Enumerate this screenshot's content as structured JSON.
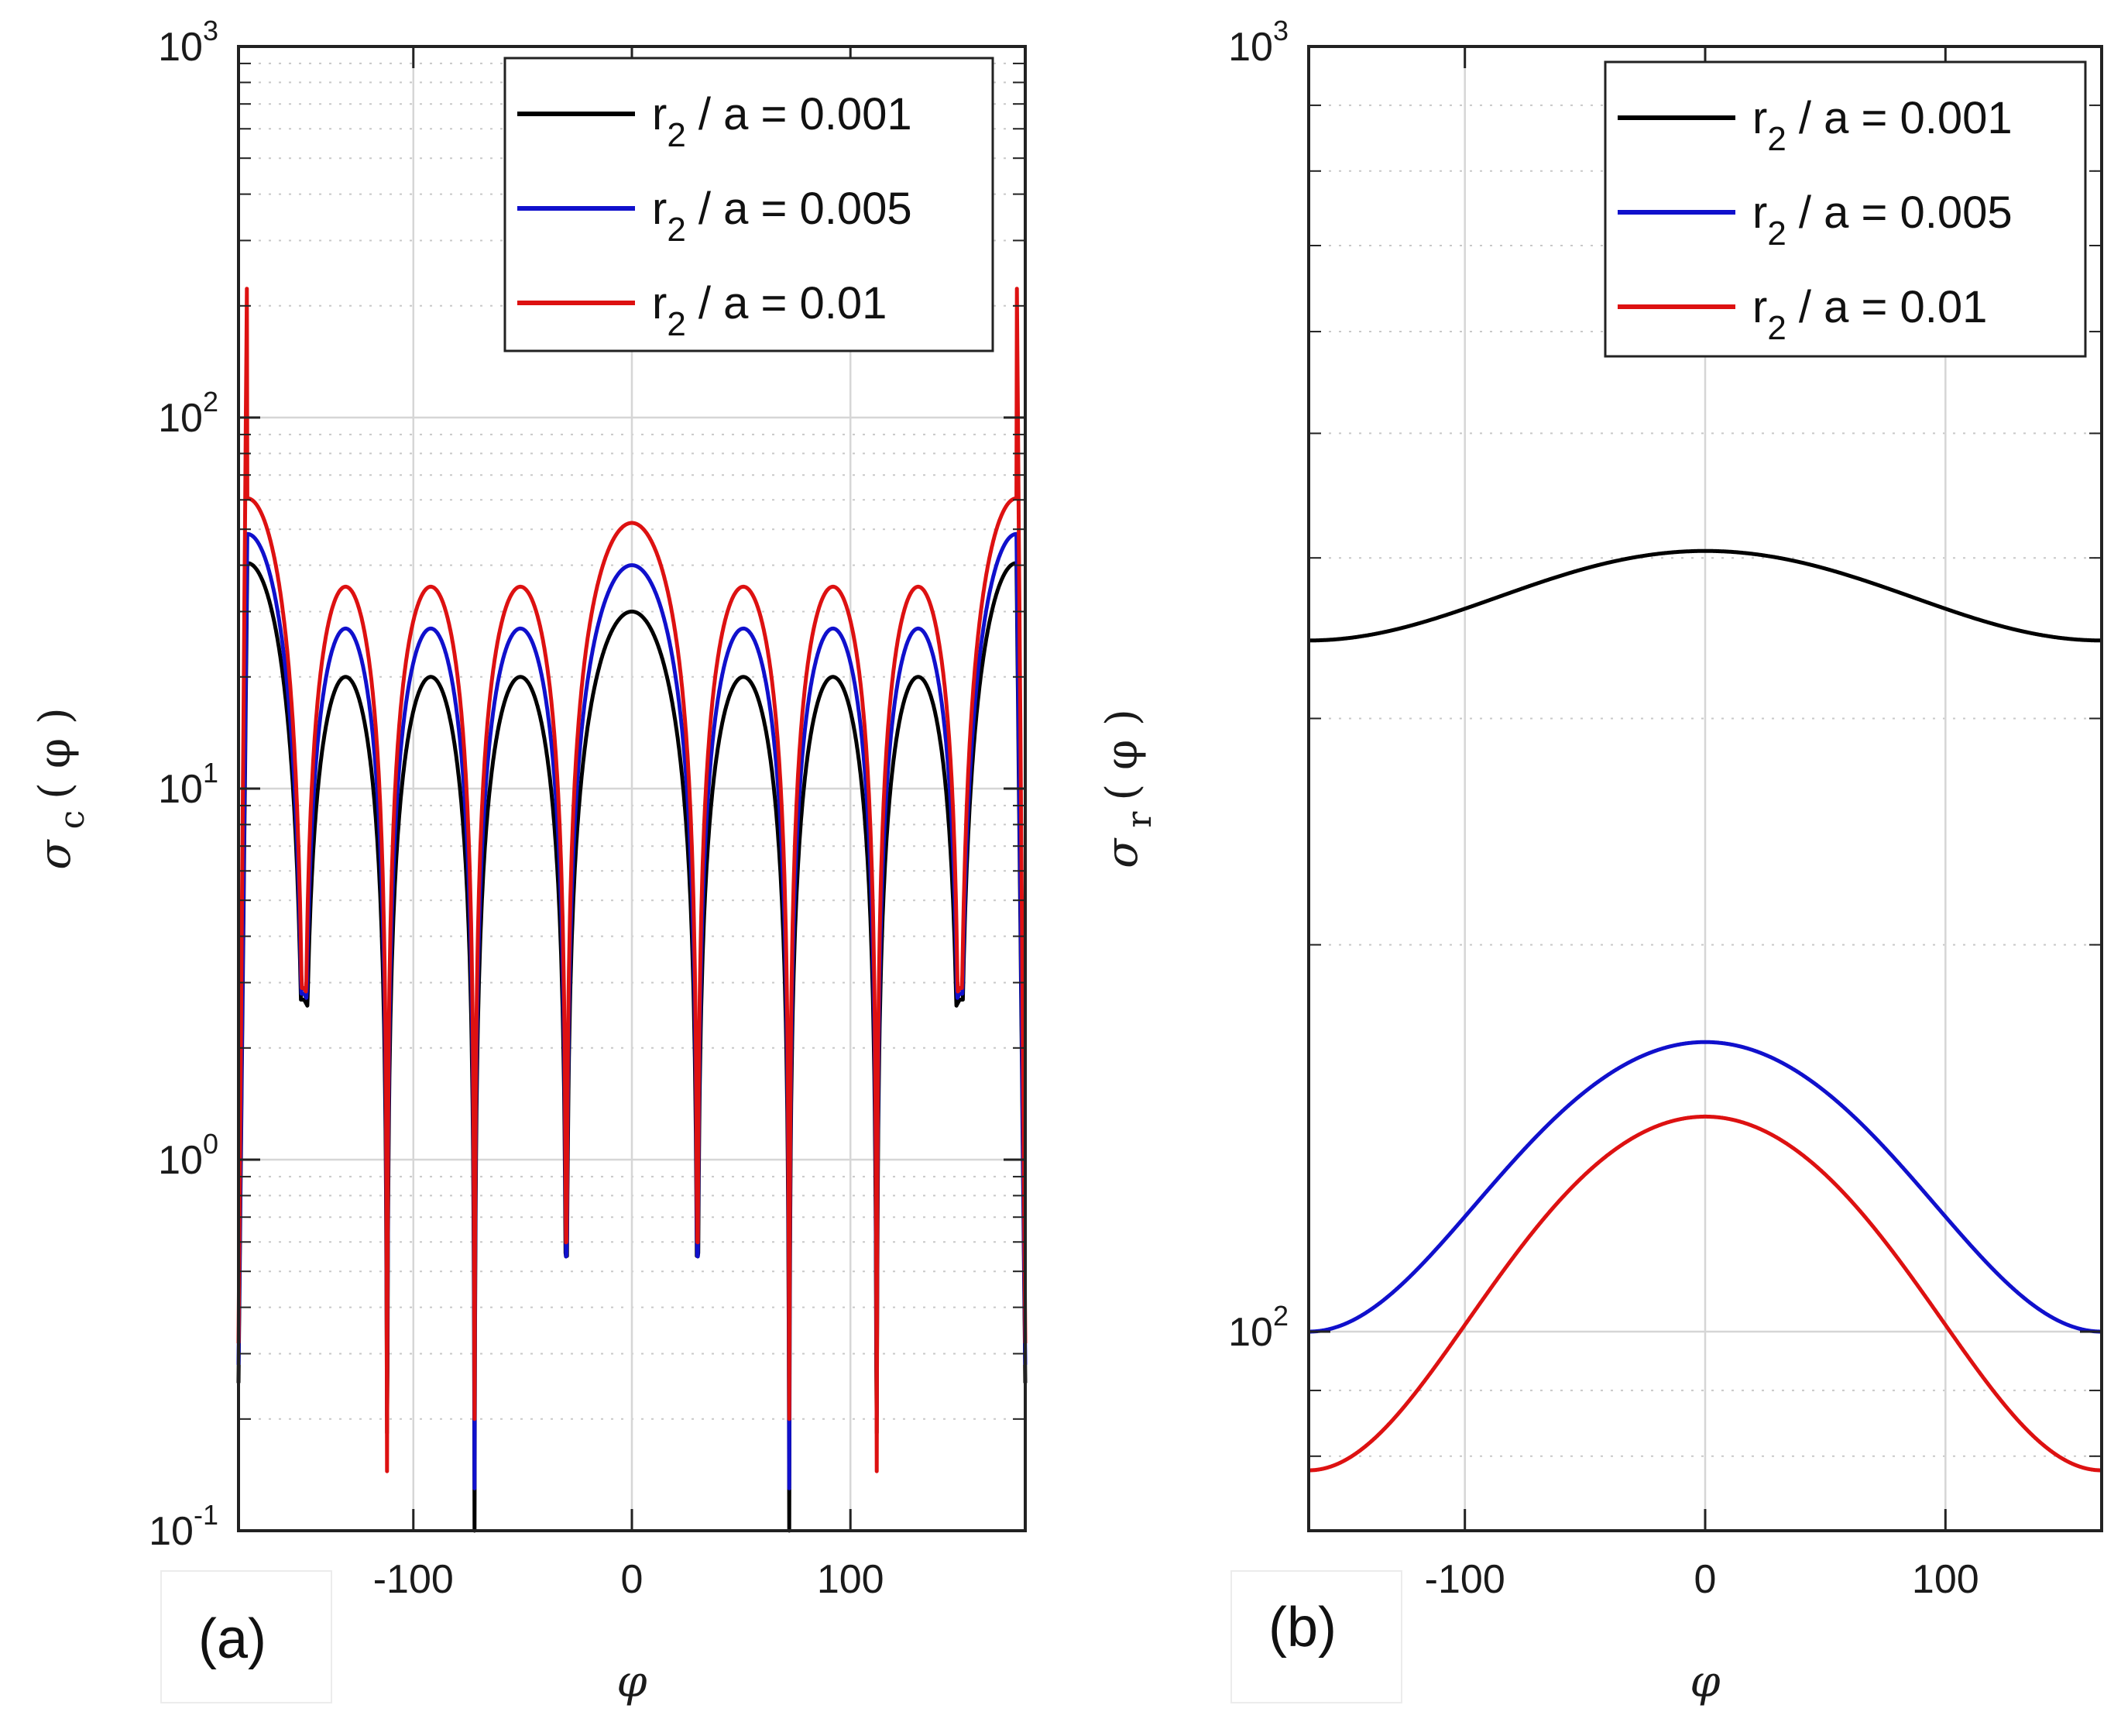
{
  "chart_data": [
    {
      "panel": "(a)",
      "type": "line",
      "yscale": "log",
      "xlim": [
        -180,
        180
      ],
      "ylim": [
        0.1,
        1000
      ],
      "xlabel": "φ",
      "ylabel": "σ_c ( φ )",
      "xticks": [
        -100,
        0,
        100
      ],
      "yticks": [
        {
          "value": 0.1,
          "base": "10",
          "exp": "-1"
        },
        {
          "value": 1,
          "base": "10",
          "exp": "0"
        },
        {
          "value": 10,
          "base": "10",
          "exp": "1"
        },
        {
          "value": 100,
          "base": "10",
          "exp": "2"
        },
        {
          "value": 1000,
          "base": "10",
          "exp": "3"
        }
      ],
      "grid": true,
      "legend_position": "top-right",
      "series": [
        {
          "name": "r_2 / a = 0.001",
          "label_main": "r",
          "label_sub": "2",
          "label_rest": " / a = 0.001",
          "color": "#000000",
          "pole": 40,
          "humps": [
            20,
            30
          ],
          "dips": [
            2.7,
            0.55,
            0.095,
            0.18,
            0.25
          ],
          "edge_min": 0.25
        },
        {
          "name": "r_2 / a = 0.005",
          "label_main": "r",
          "label_sub": "2",
          "label_rest": " / a = 0.005",
          "color": "#1010cc",
          "pole": 48,
          "humps": [
            27,
            40
          ],
          "dips": [
            2.8,
            0.55,
            0.13,
            0.2,
            0.28
          ],
          "edge_min": 0.28
        },
        {
          "name": "r_2 / a = 0.01",
          "label_main": "r",
          "label_sub": "2",
          "label_rest": " / a = 0.01",
          "color": "#dd1111",
          "pole": 60,
          "humps": [
            35,
            52
          ],
          "dips": [
            2.9,
            0.6,
            0.2,
            0.13,
            0.3
          ],
          "edge_min": 0.32,
          "spike": 300
        }
      ]
    },
    {
      "panel": "(b)",
      "type": "line",
      "yscale": "log",
      "xlim": [
        -165,
        165
      ],
      "ylim": [
        70,
        1000
      ],
      "xlabel": "φ",
      "ylabel": "σ_r ( φ )",
      "xticks": [
        -100,
        0,
        100
      ],
      "yticks": [
        {
          "value": 100,
          "base": "10",
          "exp": "2"
        },
        {
          "value": 1000,
          "base": "10",
          "exp": "3"
        }
      ],
      "grid": true,
      "legend_position": "top-right",
      "series": [
        {
          "name": "r_2 / a = 0.001",
          "label_main": "r",
          "label_sub": "2",
          "label_rest": " / a = 0.001",
          "color": "#000000",
          "peak": 405,
          "edge": 345
        },
        {
          "name": "r_2 / a = 0.005",
          "label_main": "r",
          "label_sub": "2",
          "label_rest": " / a = 0.005",
          "color": "#1010cc",
          "peak": 168,
          "edge": 100
        },
        {
          "name": "r_2 / a = 0.01",
          "label_main": "r",
          "label_sub": "2",
          "label_rest": " / a = 0.01",
          "color": "#dd1111",
          "peak": 147,
          "edge": 78
        }
      ]
    }
  ]
}
